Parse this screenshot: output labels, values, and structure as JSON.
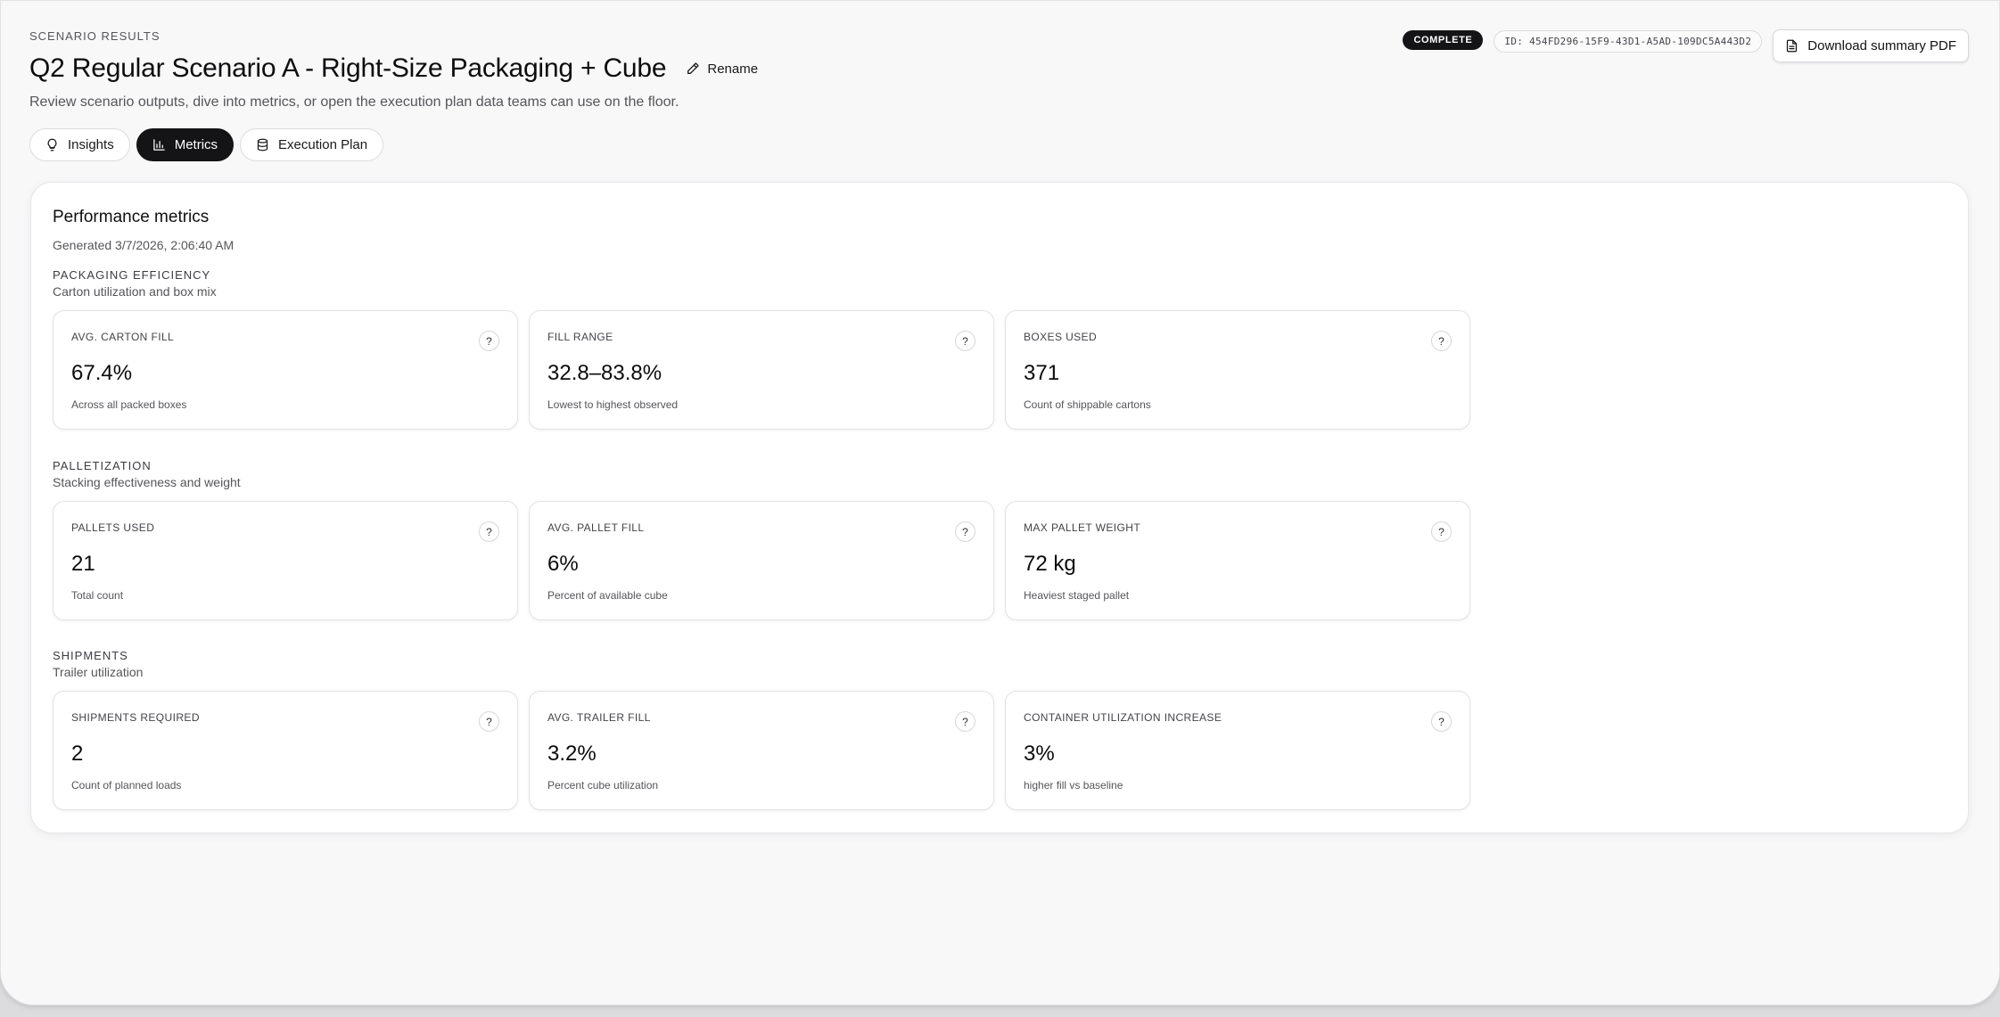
{
  "header": {
    "eyebrow": "SCENARIO RESULTS",
    "title": "Q2 Regular Scenario A - Right-Size Packaging + Cube",
    "rename_label": "Rename",
    "subtitle": "Review scenario outputs, dive into metrics, or open the execution plan data teams can use on the floor.",
    "status": "COMPLETE",
    "id_text": "ID: 454FD296-15F9-43D1-A5AD-109DC5A443D2",
    "download_label": "Download summary PDF"
  },
  "tabs": [
    {
      "label": "Insights",
      "icon": "lightbulb-icon",
      "active": false
    },
    {
      "label": "Metrics",
      "icon": "bar-chart-icon",
      "active": true
    },
    {
      "label": "Execution Plan",
      "icon": "database-icon",
      "active": false
    }
  ],
  "panel": {
    "title": "Performance metrics",
    "generated": "Generated 3/7/2026, 2:06:40 AM",
    "sections": [
      {
        "title": "PACKAGING EFFICIENCY",
        "subtitle": "Carton utilization and box mix",
        "cards": [
          {
            "label": "AVG. CARTON FILL",
            "value": "67.4%",
            "desc": "Across all packed boxes"
          },
          {
            "label": "FILL RANGE",
            "value": "32.8–83.8%",
            "desc": "Lowest to highest observed"
          },
          {
            "label": "BOXES USED",
            "value": "371",
            "desc": "Count of shippable cartons"
          }
        ]
      },
      {
        "title": "PALLETIZATION",
        "subtitle": "Stacking effectiveness and weight",
        "cards": [
          {
            "label": "PALLETS USED",
            "value": "21",
            "desc": "Total count"
          },
          {
            "label": "AVG. PALLET FILL",
            "value": "6%",
            "desc": "Percent of available cube"
          },
          {
            "label": "MAX PALLET WEIGHT",
            "value": "72 kg",
            "desc": "Heaviest staged pallet"
          }
        ]
      },
      {
        "title": "SHIPMENTS",
        "subtitle": "Trailer utilization",
        "cards": [
          {
            "label": "SHIPMENTS REQUIRED",
            "value": "2",
            "desc": "Count of planned loads"
          },
          {
            "label": "AVG. TRAILER FILL",
            "value": "3.2%",
            "desc": "Percent cube utilization"
          },
          {
            "label": "CONTAINER UTILIZATION INCREASE",
            "value": "3%",
            "desc": "higher fill vs baseline"
          }
        ]
      }
    ],
    "help_label": "?"
  },
  "colors": {
    "accent_dark": "#141416",
    "background": "#f8f8f9",
    "card_border": "#e3e3e7"
  }
}
